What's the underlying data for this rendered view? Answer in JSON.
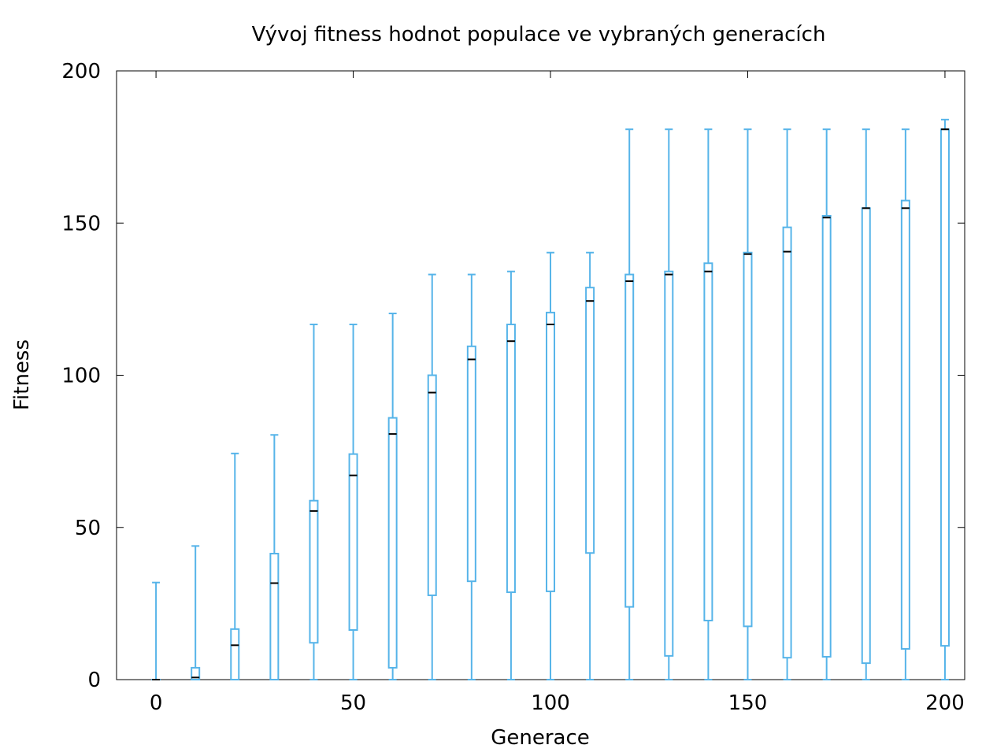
{
  "chart_data": {
    "type": "box",
    "title": "Vývoj fitness hodnot populace ve vybraných generacích",
    "xlabel": "Generace",
    "ylabel": "Fitness",
    "xlim": [
      -10,
      205
    ],
    "ylim": [
      0,
      200
    ],
    "xticks": [
      0,
      50,
      100,
      150,
      200
    ],
    "yticks": [
      0,
      50,
      100,
      150,
      200
    ],
    "grid": false,
    "box_color": "#56b4e9",
    "median_color": "#000000",
    "boxes": [
      {
        "x": 0,
        "min": 0,
        "q1": 0,
        "median": 0,
        "q3": 0,
        "max": 31.9
      },
      {
        "x": 10,
        "min": 0,
        "q1": 0,
        "median": 0.7,
        "q3": 3.9,
        "max": 43.9
      },
      {
        "x": 20,
        "min": 0,
        "q1": 0,
        "median": 11.3,
        "q3": 16.6,
        "max": 74.3
      },
      {
        "x": 30,
        "min": 0,
        "q1": 0,
        "median": 31.7,
        "q3": 41.4,
        "max": 80.4
      },
      {
        "x": 40,
        "min": 0,
        "q1": 12.1,
        "median": 55.4,
        "q3": 58.8,
        "max": 116.7
      },
      {
        "x": 50,
        "min": 0,
        "q1": 16.3,
        "median": 67.1,
        "q3": 74.1,
        "max": 116.7
      },
      {
        "x": 60,
        "min": 0,
        "q1": 3.9,
        "median": 80.7,
        "q3": 86.0,
        "max": 120.3
      },
      {
        "x": 70,
        "min": 0,
        "q1": 27.7,
        "median": 94.3,
        "q3": 100.0,
        "max": 133.1
      },
      {
        "x": 80,
        "min": 0,
        "q1": 32.3,
        "median": 105.2,
        "q3": 109.5,
        "max": 133.1
      },
      {
        "x": 90,
        "min": 0,
        "q1": 28.7,
        "median": 111.2,
        "q3": 116.7,
        "max": 134.1
      },
      {
        "x": 100,
        "min": 0,
        "q1": 29.0,
        "median": 116.7,
        "q3": 120.6,
        "max": 140.3
      },
      {
        "x": 110,
        "min": 0,
        "q1": 41.6,
        "median": 124.4,
        "q3": 128.8,
        "max": 140.3
      },
      {
        "x": 120,
        "min": 0,
        "q1": 23.9,
        "median": 130.9,
        "q3": 133.1,
        "max": 180.8
      },
      {
        "x": 130,
        "min": 0,
        "q1": 7.8,
        "median": 133.1,
        "q3": 134.1,
        "max": 180.8
      },
      {
        "x": 140,
        "min": 0,
        "q1": 19.4,
        "median": 134.1,
        "q3": 136.8,
        "max": 180.8
      },
      {
        "x": 150,
        "min": 0,
        "q1": 17.5,
        "median": 139.8,
        "q3": 140.3,
        "max": 180.8
      },
      {
        "x": 160,
        "min": 0,
        "q1": 7.2,
        "median": 140.6,
        "q3": 148.6,
        "max": 180.8
      },
      {
        "x": 170,
        "min": 0,
        "q1": 7.5,
        "median": 151.8,
        "q3": 152.4,
        "max": 180.8
      },
      {
        "x": 180,
        "min": 0,
        "q1": 5.4,
        "median": 154.9,
        "q3": 154.9,
        "max": 180.8
      },
      {
        "x": 190,
        "min": 0,
        "q1": 10.1,
        "median": 154.9,
        "q3": 157.4,
        "max": 180.8
      },
      {
        "x": 200,
        "min": 0,
        "q1": 11.1,
        "median": 180.8,
        "q3": 180.8,
        "max": 184.0
      }
    ]
  }
}
